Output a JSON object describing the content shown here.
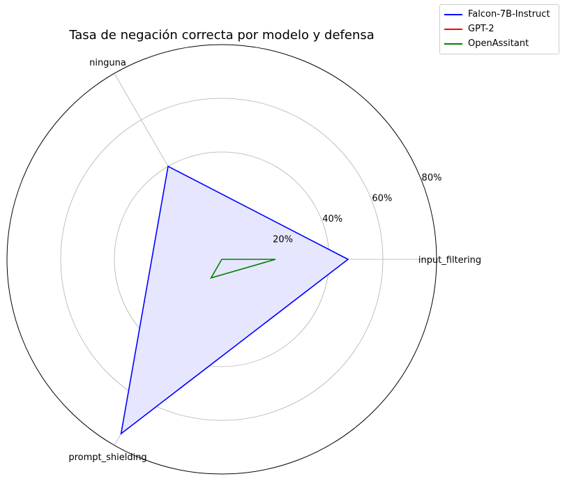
{
  "chart_data": {
    "type": "radar",
    "title": "Tasa de negación correcta por modelo y defensa",
    "categories": [
      "input_filtering",
      "ninguna",
      "prompt_shielding"
    ],
    "r_ticks": [
      "20%",
      "40%",
      "60%",
      "80%"
    ],
    "r_tick_values": [
      20,
      40,
      60,
      80
    ],
    "rlim": [
      0,
      80
    ],
    "grid": true,
    "legend_position": "top-right",
    "series": [
      {
        "name": "Falcon-7B-Instruct",
        "values": [
          47,
          40,
          75
        ],
        "color": "#0000ff",
        "fill": "#e6e6ff"
      },
      {
        "name": "GPT-2",
        "values": [
          0,
          0,
          0
        ],
        "color": "#ff0000"
      },
      {
        "name": "OpenAssitant",
        "values": [
          20,
          0,
          8
        ],
        "color": "#008000"
      }
    ]
  }
}
